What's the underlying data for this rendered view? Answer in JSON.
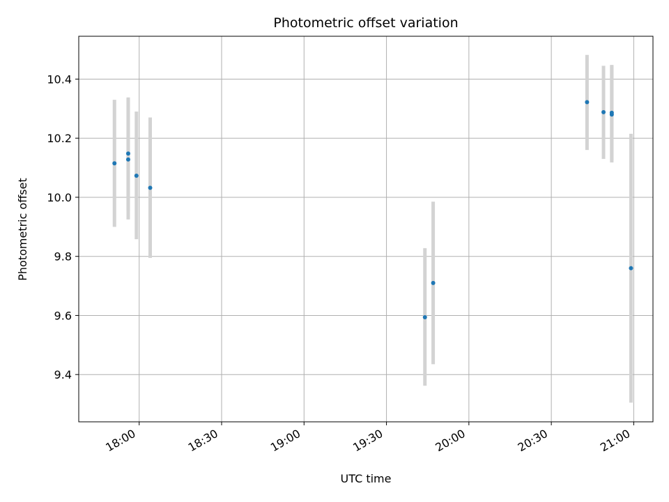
{
  "chart_data": {
    "type": "scatter",
    "title": "Photometric offset variation",
    "xlabel": "UTC time",
    "ylabel": "Photometric offset",
    "grid": true,
    "xlim": [
      "17:38",
      "21:07"
    ],
    "ylim": [
      9.24,
      10.545
    ],
    "x_ticks": [
      "18:00",
      "18:30",
      "19:00",
      "19:30",
      "20:00",
      "20:30",
      "21:00"
    ],
    "y_ticks": [
      9.4,
      9.6,
      9.8,
      10.0,
      10.2,
      10.4
    ],
    "y_tick_labels": [
      "9.4",
      "9.6",
      "9.8",
      "10.0",
      "10.2",
      "10.4"
    ],
    "colors": {
      "points": "#1f77b4",
      "error_bars": "#d3d3d3",
      "grid": "#b0b0b0"
    },
    "points": [
      {
        "x": "17:51",
        "y": 10.115,
        "err_low": 9.9,
        "err_high": 10.33
      },
      {
        "x": "17:56",
        "y": 10.148,
        "err_low": 9.955,
        "err_high": 10.338
      },
      {
        "x": "17:56",
        "y": 10.128,
        "err_low": 9.925,
        "err_high": 10.335
      },
      {
        "x": "17:59",
        "y": 10.073,
        "err_low": 9.858,
        "err_high": 10.29
      },
      {
        "x": "18:04",
        "y": 10.032,
        "err_low": 9.795,
        "err_high": 10.27
      },
      {
        "x": "19:44",
        "y": 9.594,
        "err_low": 9.362,
        "err_high": 9.828
      },
      {
        "x": "19:47",
        "y": 9.71,
        "err_low": 9.435,
        "err_high": 9.985
      },
      {
        "x": "20:43",
        "y": 10.322,
        "err_low": 10.16,
        "err_high": 10.482
      },
      {
        "x": "20:49",
        "y": 10.288,
        "err_low": 10.13,
        "err_high": 10.445
      },
      {
        "x": "20:52",
        "y": 10.28,
        "err_low": 10.118,
        "err_high": 10.445
      },
      {
        "x": "20:52",
        "y": 10.286,
        "err_low": 10.125,
        "err_high": 10.448
      },
      {
        "x": "20:59",
        "y": 9.76,
        "err_low": 9.305,
        "err_high": 10.215
      }
    ]
  }
}
